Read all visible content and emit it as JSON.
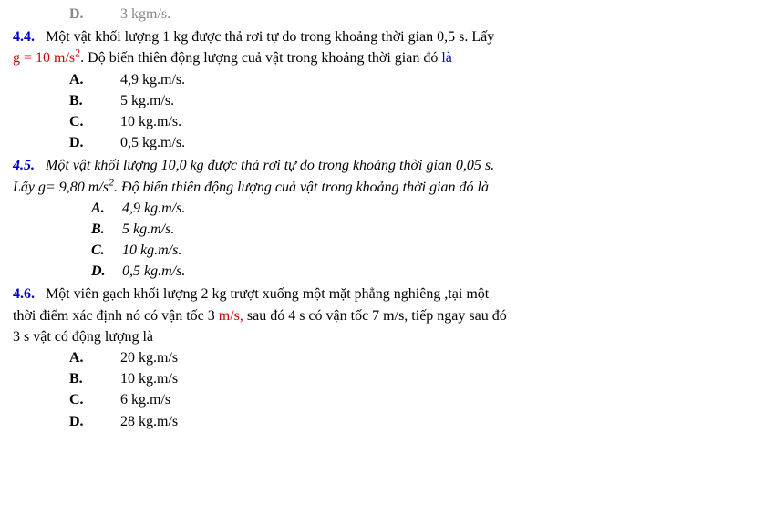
{
  "prev": {
    "letter": "D.",
    "text": "3 kgm/s."
  },
  "q44": {
    "num": "4.4.",
    "line1": "Một vật khối lượng 1 kg được thả rơi tự do trong khoảng thời gian 0,5 s. Lấy",
    "line2a": "g = 10 m/s",
    "line2sup": "2",
    "line2b": ". Độ biến thiên động lượng cuả vật trong khoảng thời gian đó ",
    "line2c": "là",
    "answers": [
      {
        "letter": "A.",
        "text": "4,9 kg.m/s."
      },
      {
        "letter": "B.",
        "text": "5 kg.m/s."
      },
      {
        "letter": "C.",
        "text": "10 kg.m/s."
      },
      {
        "letter": "D.",
        "text": "0,5 kg.m/s."
      }
    ]
  },
  "q45": {
    "num": "4.5.",
    "line1": "Một vật khối lượng 10,0 kg được thả rơi tự do trong khoảng thời gian 0,05 s.",
    "line2a": "Lấy g= 9,80 m/s",
    "line2sup": "2",
    "line2b": ". Độ biến thiên động lượng cuả vật trong khoảng thời gian đó là",
    "answers": [
      {
        "letter": "A.",
        "text": "4,9 kg.m/s."
      },
      {
        "letter": "B.",
        "text": "5 kg.m/s."
      },
      {
        "letter": "C.",
        "text": "10 kg.m/s."
      },
      {
        "letter": "D.",
        "text": "0,5 kg.m/s."
      }
    ]
  },
  "q46": {
    "num": "4.6.",
    "line1": "Một viên gạch khối lượng 2 kg trượt xuống một mặt phẳng nghiêng ,tại một",
    "line2a": "thời điểm xác định nó có vận tốc 3 ",
    "line2b": "m/s,",
    "line2c": " sau đó 4 s có vận tốc 7 m/s, tiếp ngay sau đó",
    "line3": "3 s vật có động lượng là",
    "answers": [
      {
        "letter": "A.",
        "text": "20 kg.m/s"
      },
      {
        "letter": "B.",
        "text": "10 kg.m/s"
      },
      {
        "letter": "C.",
        "text": "6 kg.m/s"
      },
      {
        "letter": "D.",
        "text": "28 kg.m/s"
      }
    ]
  }
}
